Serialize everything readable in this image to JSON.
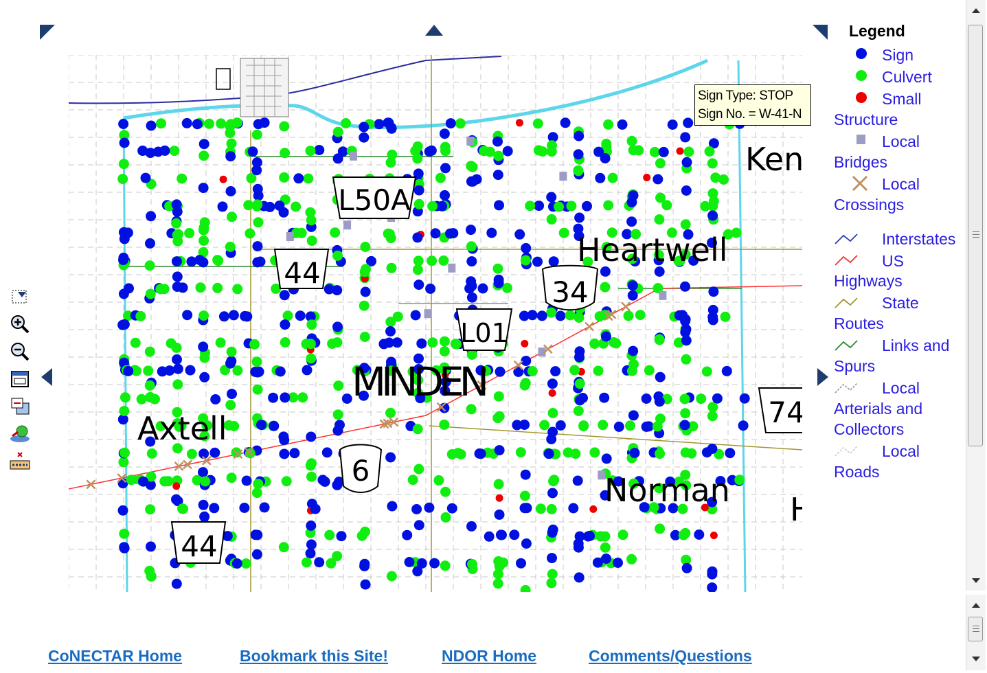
{
  "legend": {
    "title": "Legend",
    "items": [
      {
        "symbol": "blue-dot",
        "color": "#0010e0",
        "line1": "Sign",
        "line2": ""
      },
      {
        "symbol": "green-dot",
        "color": "#10ee10",
        "line1": "Culvert",
        "line2": ""
      },
      {
        "symbol": "red-dot",
        "color": "#ee0000",
        "line1": "Small",
        "line2": "Structure"
      },
      {
        "symbol": "gray-square",
        "color": "#9c9cc6",
        "line1": "Local",
        "line2": "Bridges"
      },
      {
        "symbol": "brown-x",
        "color": "#c09060",
        "line1": "Local",
        "line2": "Crossings"
      },
      {
        "symbol": "line-interstate",
        "color": "#2b3fae",
        "line1": "Interstates",
        "line2": ""
      },
      {
        "symbol": "line-us",
        "color": "#ff3030",
        "line1": "US",
        "line2": "Highways"
      },
      {
        "symbol": "line-state",
        "color": "#a39530",
        "line1": "State",
        "line2": "Routes"
      },
      {
        "symbol": "line-links",
        "color": "#2a8a2a",
        "line1": "Links and",
        "line2": "Spurs"
      },
      {
        "symbol": "line-arterial",
        "color": "#9a9a9a",
        "line1": "Local",
        "line2": "Arterials and Collectors"
      },
      {
        "symbol": "line-road",
        "color": "#cfcfcf",
        "line1": "Local",
        "line2": "Roads"
      }
    ]
  },
  "tooltip": {
    "line1": "Sign Type: STOP",
    "line2": "Sign No. = W-41-N"
  },
  "map": {
    "labels": {
      "shield_150a": "L50A",
      "shield_44_top": "44",
      "shield_34": "34",
      "shield_l01": "L01",
      "shield_6": "6",
      "shield_44_bottom": "44",
      "shield_74": "74",
      "town_minden": "MINDEN",
      "town_axtell": "Axtell",
      "town_heartwell": "Heartwell",
      "town_norman": "Norman",
      "town_ken": "Ken",
      "town_h": "H"
    }
  },
  "toolbar": {
    "tools": [
      "select-box-icon",
      "zoom-in-icon",
      "zoom-out-icon",
      "full-extent-icon",
      "previous-extent-icon",
      "identify-icon",
      "clear-selection-icon"
    ]
  },
  "footer": {
    "links": [
      "CoNECTAR Home",
      "Bookmark this Site!",
      "NDOR Home",
      "Comments/Questions"
    ]
  }
}
